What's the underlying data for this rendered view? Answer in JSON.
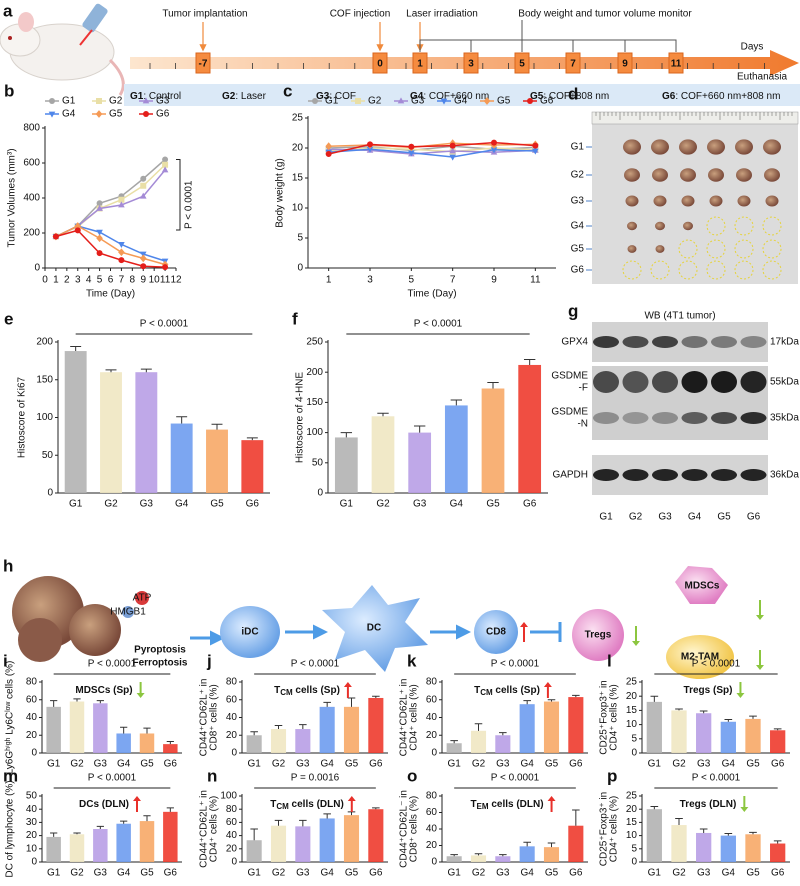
{
  "timeline": {
    "label": "a",
    "days": [
      -7,
      0,
      1,
      3,
      5,
      7,
      9,
      11
    ],
    "events": [
      "Tumor implantation",
      "COF injection",
      "Laser irradiation",
      "Body weight and tumor volume monitor"
    ],
    "axis_label": "Days",
    "end_label": "Euthanasia",
    "groups": [
      {
        "id": "G1",
        "desc": ": Control"
      },
      {
        "id": "G2",
        "desc": ": Laser"
      },
      {
        "id": "G3",
        "desc": ": COF"
      },
      {
        "id": "G4",
        "desc": ": COF+660 nm"
      },
      {
        "id": "G5",
        "desc": ": COF+808 nm"
      },
      {
        "id": "G6",
        "desc": ": COF+660 nm+808 nm"
      }
    ]
  },
  "photo": {
    "label": "d",
    "rows": [
      "G1",
      "G2",
      "G3",
      "G4",
      "G5",
      "G6"
    ]
  },
  "blot": {
    "label": "g",
    "title": "WB (4T1 tumor)",
    "proteins": [
      [
        "GPX4"
      ],
      [
        "GSDME",
        "-F"
      ],
      [
        "GSDME",
        "-N"
      ],
      [
        "GAPDH"
      ]
    ],
    "sizes": [
      "17kDa",
      "55kDa",
      "35kDa",
      "36kDa"
    ],
    "lanes": [
      "G1",
      "G2",
      "G3",
      "G4",
      "G5",
      "G6"
    ]
  },
  "schematic": {
    "label": "h",
    "atp": "ATP",
    "hmgb1": "HMGB1",
    "pyroptosis": "Pyroptosis",
    "ferroptosis": "Ferroptosis",
    "idc": "iDC",
    "dc": "DC",
    "cd8": "CD8",
    "tregs": "Tregs",
    "mdscs": "MDSCs",
    "m2tam": "M2-TAM"
  },
  "chart_data": [
    {
      "type": "line",
      "label": "b",
      "xlabel": "Time (Day)",
      "ylabel": "Tumor Volumes (mm³)",
      "xlim": [
        0,
        12
      ],
      "xticks": [
        0,
        1,
        2,
        3,
        4,
        5,
        6,
        7,
        8,
        9,
        10,
        11,
        12
      ],
      "ylim": [
        0,
        800
      ],
      "yticks": [
        0,
        200,
        400,
        600,
        800
      ],
      "legend_columns": 3,
      "annotation": "P < 0.0001",
      "x": [
        1,
        3,
        5,
        7,
        9,
        11
      ],
      "series": [
        {
          "name": "G1",
          "color": "#a6a6a6",
          "marker": "circle",
          "values": [
            180,
            240,
            370,
            410,
            510,
            620
          ]
        },
        {
          "name": "G2",
          "color": "#e9dfa6",
          "marker": "square",
          "values": [
            180,
            235,
            340,
            390,
            470,
            590
          ]
        },
        {
          "name": "G3",
          "color": "#a48bd6",
          "marker": "triangle",
          "values": [
            180,
            240,
            340,
            360,
            410,
            560
          ]
        },
        {
          "name": "G4",
          "color": "#4f86ea",
          "marker": "triangle-down",
          "values": [
            180,
            240,
            205,
            135,
            80,
            40
          ]
        },
        {
          "name": "G5",
          "color": "#f59a55",
          "marker": "diamond",
          "values": [
            180,
            240,
            170,
            90,
            55,
            20
          ]
        },
        {
          "name": "G6",
          "color": "#e41e1a",
          "marker": "circle",
          "values": [
            180,
            215,
            85,
            45,
            10,
            5
          ]
        }
      ]
    },
    {
      "type": "line",
      "label": "c",
      "xlabel": "Time (Day)",
      "ylabel": "Body weight (g)",
      "xlim": [
        0,
        12
      ],
      "xticks": [
        1,
        3,
        5,
        7,
        9,
        11
      ],
      "ylim": [
        0,
        25
      ],
      "yticks": [
        0,
        5,
        10,
        15,
        20,
        25
      ],
      "legend_columns": 6,
      "x": [
        1,
        3,
        5,
        7,
        9,
        11
      ],
      "series": [
        {
          "name": "G1",
          "color": "#a6a6a6",
          "marker": "circle",
          "values": [
            20.0,
            20.2,
            19.6,
            20.3,
            19.8,
            20.1
          ]
        },
        {
          "name": "G2",
          "color": "#e9dfa6",
          "marker": "square",
          "values": [
            19.5,
            20.0,
            19.8,
            19.4,
            20.0,
            19.7
          ]
        },
        {
          "name": "G3",
          "color": "#a48bd6",
          "marker": "triangle",
          "values": [
            19.8,
            19.6,
            19.0,
            19.5,
            19.3,
            19.6
          ]
        },
        {
          "name": "G4",
          "color": "#4f86ea",
          "marker": "triangle-down",
          "values": [
            19.3,
            19.8,
            19.2,
            18.5,
            19.7,
            19.5
          ]
        },
        {
          "name": "G5",
          "color": "#f59a55",
          "marker": "diamond",
          "values": [
            20.3,
            20.5,
            20.1,
            20.8,
            20.5,
            20.6
          ]
        },
        {
          "name": "G6",
          "color": "#e41e1a",
          "marker": "circle",
          "values": [
            19.0,
            20.6,
            20.2,
            20.4,
            20.9,
            20.4
          ]
        }
      ]
    },
    {
      "type": "bar",
      "label": "e",
      "ylabel": [
        "Histoscore of Ki67"
      ],
      "ylim": [
        0,
        200
      ],
      "yticks": [
        0,
        50,
        100,
        150,
        200
      ],
      "annotation": "P < 0.0001",
      "categories": [
        "G1",
        "G2",
        "G3",
        "G4",
        "G5",
        "G6"
      ],
      "values": [
        188,
        160,
        160,
        92,
        84,
        70
      ],
      "errors": [
        6,
        3,
        4,
        9,
        7,
        3
      ],
      "colors": [
        "#b3b3b3",
        "#f0e7c2",
        "#b89ee6",
        "#6e9cf0",
        "#f7a867",
        "#ee3b2d"
      ]
    },
    {
      "type": "bar",
      "label": "f",
      "ylabel": [
        "Histoscore of 4-HNE"
      ],
      "ylim": [
        0,
        250
      ],
      "yticks": [
        0,
        50,
        100,
        150,
        200,
        250
      ],
      "annotation": "P < 0.0001",
      "categories": [
        "G1",
        "G2",
        "G3",
        "G4",
        "G5",
        "G6"
      ],
      "values": [
        92,
        127,
        100,
        145,
        173,
        212
      ],
      "errors": [
        8,
        5,
        11,
        9,
        10,
        9
      ],
      "colors": [
        "#b3b3b3",
        "#f0e7c2",
        "#b89ee6",
        "#6e9cf0",
        "#f7a867",
        "#ee3b2d"
      ]
    },
    {
      "type": "bar",
      "label": "i",
      "ylabel": [
        "Ly6Gʰⁱᵍʰ Ly6Cˡᵒʷ cells (%)"
      ],
      "ylim": [
        0,
        80
      ],
      "yticks": [
        0,
        20,
        40,
        60,
        80
      ],
      "annotation": "P < 0.0001",
      "title": [
        {
          "text": "MDSCs (Sp)"
        }
      ],
      "trend": "down",
      "trend_color": "#8cc63f",
      "categories": [
        "G1",
        "G2",
        "G3",
        "G4",
        "G5",
        "G6"
      ],
      "values": [
        52,
        58,
        56,
        22,
        22,
        10
      ],
      "errors": [
        7,
        3,
        3,
        7,
        6,
        3
      ],
      "colors": [
        "#b3b3b3",
        "#f0e7c2",
        "#b89ee6",
        "#6e9cf0",
        "#f7a867",
        "#ee3b2d"
      ]
    },
    {
      "type": "bar",
      "label": "j",
      "ylabel": [
        "CD44⁺CD62L⁺ in",
        "CD8⁺ cells (%)"
      ],
      "ylim": [
        0,
        80
      ],
      "yticks": [
        0,
        20,
        40,
        60,
        80
      ],
      "annotation": "P < 0.0001",
      "title": [
        {
          "text": "T"
        },
        {
          "text": "CM",
          "sub": true
        },
        {
          "text": " cells (Sp)"
        }
      ],
      "trend": "up",
      "trend_color": "#e8302a",
      "categories": [
        "G1",
        "G2",
        "G3",
        "G4",
        "G5",
        "G6"
      ],
      "values": [
        20,
        27,
        27,
        52,
        52,
        62
      ],
      "errors": [
        4,
        4,
        5,
        5,
        10,
        2
      ],
      "colors": [
        "#b3b3b3",
        "#f0e7c2",
        "#b89ee6",
        "#6e9cf0",
        "#f7a867",
        "#ee3b2d"
      ]
    },
    {
      "type": "bar",
      "label": "k",
      "ylabel": [
        "CD44⁺CD62L⁺ in",
        "CD4⁺ cells (%)"
      ],
      "ylim": [
        0,
        80
      ],
      "yticks": [
        0,
        20,
        40,
        60,
        80
      ],
      "annotation": "P < 0.0001",
      "title": [
        {
          "text": "T"
        },
        {
          "text": "CM",
          "sub": true
        },
        {
          "text": " cells (Sp)"
        }
      ],
      "trend": "up",
      "trend_color": "#e8302a",
      "categories": [
        "G1",
        "G2",
        "G3",
        "G4",
        "G5",
        "G6"
      ],
      "values": [
        11,
        25,
        20,
        55,
        58,
        63
      ],
      "errors": [
        3,
        8,
        3,
        4,
        2,
        2
      ],
      "colors": [
        "#b3b3b3",
        "#f0e7c2",
        "#b89ee6",
        "#6e9cf0",
        "#f7a867",
        "#ee3b2d"
      ]
    },
    {
      "type": "bar",
      "label": "l",
      "ylabel": [
        "CD25⁺Foxp3⁺ in",
        "CD4⁺ cells (%)"
      ],
      "ylim": [
        0,
        25
      ],
      "yticks": [
        0,
        5,
        10,
        15,
        20,
        25
      ],
      "annotation": "P < 0.0001",
      "title": [
        {
          "text": "Tregs (Sp)"
        }
      ],
      "trend": "down",
      "trend_color": "#8cc63f",
      "categories": [
        "G1",
        "G2",
        "G3",
        "G4",
        "G5",
        "G6"
      ],
      "values": [
        18,
        15,
        14,
        11,
        12,
        8
      ],
      "errors": [
        2,
        0.5,
        0.8,
        0.8,
        1,
        0.5
      ],
      "colors": [
        "#b3b3b3",
        "#f0e7c2",
        "#b89ee6",
        "#6e9cf0",
        "#f7a867",
        "#ee3b2d"
      ]
    },
    {
      "type": "bar",
      "label": "m",
      "ylabel": [
        "DC of lymphocyte (%)"
      ],
      "ylim": [
        0,
        50
      ],
      "yticks": [
        0,
        10,
        20,
        30,
        40,
        50
      ],
      "annotation": "P < 0.0001",
      "title": [
        {
          "text": "DCs (DLN)"
        }
      ],
      "trend": "up",
      "trend_color": "#e8302a",
      "categories": [
        "G1",
        "G2",
        "G3",
        "G4",
        "G5",
        "G6"
      ],
      "values": [
        19,
        21,
        25,
        29,
        31,
        38
      ],
      "errors": [
        3,
        1,
        2,
        2,
        4,
        3
      ],
      "colors": [
        "#b3b3b3",
        "#f0e7c2",
        "#b89ee6",
        "#6e9cf0",
        "#f7a867",
        "#ee3b2d"
      ]
    },
    {
      "type": "bar",
      "label": "n",
      "ylabel": [
        "CD44⁺CD62L⁺ in",
        "CD4⁺ cells (%)"
      ],
      "ylim": [
        0,
        100
      ],
      "yticks": [
        0,
        20,
        40,
        60,
        80,
        100
      ],
      "annotation": "P = 0.0016",
      "title": [
        {
          "text": "T"
        },
        {
          "text": "CM",
          "sub": true
        },
        {
          "text": " cells (DLN)"
        }
      ],
      "trend": "up",
      "trend_color": "#e8302a",
      "categories": [
        "G1",
        "G2",
        "G3",
        "G4",
        "G5",
        "G6"
      ],
      "values": [
        33,
        55,
        54,
        66,
        71,
        80
      ],
      "errors": [
        17,
        8,
        9,
        7,
        5,
        2
      ],
      "colors": [
        "#b3b3b3",
        "#f0e7c2",
        "#b89ee6",
        "#6e9cf0",
        "#f7a867",
        "#ee3b2d"
      ]
    },
    {
      "type": "bar",
      "label": "o",
      "ylabel": [
        "CD44⁺CD62L⁻ in",
        "CD8⁺ cells (%)"
      ],
      "ylim": [
        0,
        80
      ],
      "yticks": [
        0,
        20,
        40,
        60,
        80
      ],
      "annotation": "P < 0.0001",
      "title": [
        {
          "text": "T"
        },
        {
          "text": "EM",
          "sub": true
        },
        {
          "text": " cells (DLN)"
        }
      ],
      "trend": "up",
      "trend_color": "#e8302a",
      "categories": [
        "G1",
        "G2",
        "G3",
        "G4",
        "G5",
        "G6"
      ],
      "values": [
        7,
        8,
        7,
        19,
        18,
        44
      ],
      "errors": [
        2,
        2,
        2,
        5,
        5,
        19
      ],
      "colors": [
        "#b3b3b3",
        "#f0e7c2",
        "#b89ee6",
        "#6e9cf0",
        "#f7a867",
        "#ee3b2d"
      ]
    },
    {
      "type": "bar",
      "label": "p",
      "ylabel": [
        "CD25⁺Foxp3⁺ in",
        "CD4⁺ cells (%)"
      ],
      "ylim": [
        0,
        25
      ],
      "yticks": [
        0,
        5,
        10,
        15,
        20,
        25
      ],
      "annotation": "P < 0.0001",
      "title": [
        {
          "text": "Tregs (DLN)"
        }
      ],
      "trend": "down",
      "trend_color": "#8cc63f",
      "categories": [
        "G1",
        "G2",
        "G3",
        "G4",
        "G5",
        "G6"
      ],
      "values": [
        20,
        14,
        11,
        10,
        10.5,
        7
      ],
      "errors": [
        1,
        2.5,
        1.5,
        0.8,
        0.7,
        1
      ],
      "colors": [
        "#b3b3b3",
        "#f0e7c2",
        "#b89ee6",
        "#6e9cf0",
        "#f7a867",
        "#ee3b2d"
      ]
    }
  ]
}
